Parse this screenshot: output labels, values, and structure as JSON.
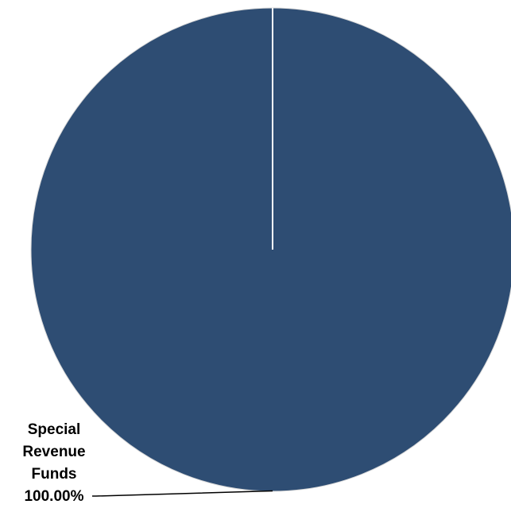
{
  "chart_data": {
    "type": "pie",
    "title": "",
    "categories": [
      "Special Revenue Funds"
    ],
    "values": [
      100.0
    ],
    "data_labels": [
      {
        "category_lines": [
          "Special",
          "Revenue",
          "Funds"
        ],
        "value_text": "100.00%"
      }
    ],
    "colors": [
      "#2e4d73"
    ],
    "separator_color": "#ffffff",
    "leader_line_color": "#000000",
    "legend": "none",
    "start_angle_deg": 0,
    "direction": "clockwise"
  }
}
